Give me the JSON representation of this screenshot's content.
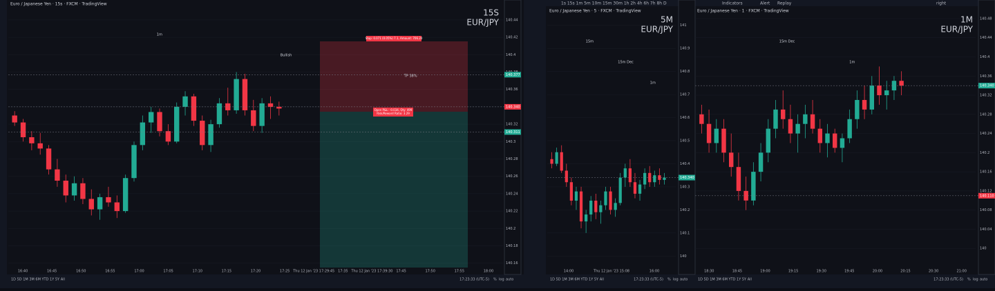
{
  "up_color": "#22ab94",
  "down_color": "#f23645",
  "panels": [
    {
      "title": "Euro / Japanese Yen · 15s · FXCM · TradingView",
      "timeframe": "15S",
      "symbol": "EUR/JPY",
      "ylim": [
        140.155,
        140.455
      ],
      "yticks": [
        140.16,
        140.18,
        140.2,
        140.22,
        140.24,
        140.26,
        140.28,
        140.3,
        140.32,
        140.34,
        140.36,
        140.38,
        140.4,
        140.42,
        140.44
      ],
      "price_tags": [
        {
          "value": 140.377,
          "label": "140.377"
        },
        {
          "value": 140.34,
          "label": "140.340"
        },
        {
          "value": 140.311,
          "label": "140.311"
        }
      ],
      "time_labels": [
        "16:40",
        "16:45",
        "16:50",
        "16:55",
        "17:00",
        "17:05",
        "17:10",
        "17:15",
        "17:20",
        "17:25",
        "Thu 12 Jan '23 17:29:45",
        "17:35",
        "Thu 12 Jan '23 17:39:30",
        "17:45",
        "17:50",
        "17:55",
        "18:00"
      ],
      "annotations": [
        "1m",
        "Bullish",
        "TP 38%"
      ],
      "position": {
        "stop": "Stop: 0.071 (0.05%) 7.1, Amount: 706.20",
        "open": "Open P&L: -0.034, Qty: 499",
        "ratio": "Risk/Reward Ratio: 3.29"
      },
      "candles": [
        [
          140.33,
          140.335,
          140.318,
          140.322
        ],
        [
          140.322,
          140.326,
          140.3,
          140.305
        ],
        [
          140.305,
          140.312,
          140.29,
          140.298
        ],
        [
          140.298,
          140.31,
          140.285,
          140.292
        ],
        [
          140.292,
          140.296,
          140.262,
          140.268
        ],
        [
          140.268,
          140.28,
          140.248,
          140.255
        ],
        [
          140.255,
          140.262,
          140.23,
          140.238
        ],
        [
          140.238,
          140.26,
          140.232,
          140.252
        ],
        [
          140.252,
          140.258,
          140.228,
          140.234
        ],
        [
          140.234,
          140.245,
          140.215,
          140.222
        ],
        [
          140.222,
          140.24,
          140.21,
          140.236
        ],
        [
          140.236,
          140.248,
          140.225,
          140.23
        ],
        [
          140.23,
          140.238,
          140.212,
          140.22
        ],
        [
          140.22,
          140.262,
          140.218,
          140.258
        ],
        [
          140.258,
          140.3,
          140.254,
          140.296
        ],
        [
          140.296,
          140.33,
          140.29,
          140.322
        ],
        [
          140.322,
          140.34,
          140.31,
          140.334
        ],
        [
          140.334,
          140.338,
          140.306,
          140.312
        ],
        [
          140.312,
          140.32,
          140.296,
          140.3
        ],
        [
          140.3,
          140.345,
          140.298,
          140.34
        ],
        [
          140.34,
          140.358,
          140.33,
          140.352
        ],
        [
          140.352,
          140.355,
          140.318,
          140.324
        ],
        [
          140.324,
          140.33,
          140.29,
          140.296
        ],
        [
          140.296,
          140.325,
          140.288,
          140.32
        ],
        [
          140.32,
          140.35,
          140.316,
          140.344
        ],
        [
          140.344,
          140.362,
          140.33,
          140.336
        ],
        [
          140.336,
          140.38,
          140.332,
          140.372
        ],
        [
          140.372,
          140.378,
          140.33,
          140.336
        ],
        [
          140.336,
          140.348,
          140.312,
          140.318
        ],
        [
          140.318,
          140.35,
          140.31,
          140.344
        ],
        [
          140.344,
          140.352,
          140.326,
          140.34
        ],
        [
          140.34,
          140.346,
          140.33,
          140.338
        ]
      ]
    },
    {
      "title": "Euro / Japanese Yen · 5 · FXCM · TradingView",
      "timeframe": "5M",
      "symbol": "EUR/JPY",
      "ylim": [
        139.95,
        141.05
      ],
      "yticks": [
        140,
        140.1,
        140.2,
        140.3,
        140.4,
        140.5,
        140.6,
        140.7,
        140.8,
        140.9,
        141
      ],
      "price_tags": [
        {
          "value": 140.34,
          "label": "140.340"
        }
      ],
      "time_labels": [
        "14:00",
        "Thu 12 Jan '23 15:08",
        "16:00"
      ],
      "annotations": [
        "15m",
        "15m Dec",
        "1m"
      ],
      "candles": [
        [
          140.42,
          140.45,
          140.38,
          140.4
        ],
        [
          140.4,
          140.47,
          140.39,
          140.45
        ],
        [
          140.45,
          140.48,
          140.36,
          140.37
        ],
        [
          140.37,
          140.4,
          140.3,
          140.32
        ],
        [
          140.32,
          140.34,
          140.22,
          140.24
        ],
        [
          140.24,
          140.3,
          140.2,
          140.28
        ],
        [
          140.28,
          140.3,
          140.12,
          140.15
        ],
        [
          140.15,
          140.2,
          140.1,
          140.18
        ],
        [
          140.18,
          140.26,
          140.15,
          140.24
        ],
        [
          140.24,
          140.27,
          140.16,
          140.19
        ],
        [
          140.19,
          140.24,
          140.14,
          140.22
        ],
        [
          140.22,
          140.3,
          140.2,
          140.28
        ],
        [
          140.28,
          140.3,
          140.18,
          140.2
        ],
        [
          140.2,
          140.25,
          140.17,
          140.23
        ],
        [
          140.23,
          140.36,
          140.22,
          140.34
        ],
        [
          140.34,
          140.4,
          140.3,
          140.38
        ],
        [
          140.38,
          140.42,
          140.3,
          140.32
        ],
        [
          140.32,
          140.36,
          140.25,
          140.27
        ],
        [
          140.27,
          140.33,
          140.24,
          140.31
        ],
        [
          140.31,
          140.38,
          140.29,
          140.36
        ],
        [
          140.36,
          140.39,
          140.3,
          140.32
        ],
        [
          140.32,
          140.37,
          140.3,
          140.35
        ],
        [
          140.35,
          140.38,
          140.31,
          140.33
        ],
        [
          140.33,
          140.36,
          140.31,
          140.34
        ]
      ]
    },
    {
      "title": "Euro / Japanese Yen · 1 · FXCM · TradingView",
      "timeframe": "1M",
      "symbol": "EUR/JPY",
      "ylim": [
        139.96,
        140.49
      ],
      "yticks": [
        140,
        140.04,
        140.08,
        140.12,
        140.16,
        140.2,
        140.24,
        140.28,
        140.32,
        140.36,
        140.4,
        140.44,
        140.48
      ],
      "price_tags": [
        {
          "value": 140.34,
          "label": "140.340"
        },
        {
          "value": 140.11,
          "label": "140.110"
        }
      ],
      "time_labels": [
        "18:30",
        "18:45",
        "19:00",
        "19:15",
        "19:30",
        "19:45",
        "20:00",
        "20:15",
        "20:30",
        "21:00"
      ],
      "annotations": [
        "15m Dec",
        "1m"
      ],
      "candles": [
        [
          140.28,
          140.3,
          140.24,
          140.26
        ],
        [
          140.26,
          140.29,
          140.2,
          140.22
        ],
        [
          140.22,
          140.27,
          140.2,
          140.25
        ],
        [
          140.25,
          140.27,
          140.18,
          140.2
        ],
        [
          140.2,
          140.24,
          140.15,
          140.17
        ],
        [
          140.17,
          140.2,
          140.1,
          140.12
        ],
        [
          140.12,
          140.15,
          140.08,
          140.1
        ],
        [
          140.1,
          140.18,
          140.09,
          140.16
        ],
        [
          140.16,
          140.22,
          140.14,
          140.2
        ],
        [
          140.2,
          140.27,
          140.18,
          140.25
        ],
        [
          140.25,
          140.31,
          140.23,
          140.29
        ],
        [
          140.29,
          140.33,
          140.25,
          140.27
        ],
        [
          140.27,
          140.3,
          140.22,
          140.24
        ],
        [
          140.24,
          140.28,
          140.2,
          140.26
        ],
        [
          140.26,
          140.3,
          140.23,
          140.28
        ],
        [
          140.28,
          140.31,
          140.24,
          140.25
        ],
        [
          140.25,
          140.27,
          140.2,
          140.22
        ],
        [
          140.22,
          140.26,
          140.19,
          140.24
        ],
        [
          140.24,
          140.25,
          140.2,
          140.21
        ],
        [
          140.21,
          140.24,
          140.18,
          140.23
        ],
        [
          140.23,
          140.29,
          140.22,
          140.27
        ],
        [
          140.27,
          140.33,
          140.25,
          140.31
        ],
        [
          140.31,
          140.34,
          140.27,
          140.29
        ],
        [
          140.29,
          140.36,
          140.28,
          140.34
        ],
        [
          140.34,
          140.38,
          140.3,
          140.32
        ],
        [
          140.32,
          140.35,
          140.29,
          140.33
        ],
        [
          140.33,
          140.36,
          140.31,
          140.35
        ],
        [
          140.35,
          140.37,
          140.32,
          140.34
        ]
      ]
    }
  ],
  "bottom": {
    "ranges": "1D  5D  1M  3M  6M  YTD  1Y  5Y  All",
    "clock": "17:23:33 (UTC-5)",
    "pct": "%",
    "log": "log",
    "auto": "auto"
  },
  "toolbar": {
    "intervals": "1s  15s  1m  5m  10m  15m  30m  1h  2h  4h  6h  7h  8h  D",
    "indicators": "Indicators",
    "alert": "Alert",
    "replay": "Replay",
    "layout": "right"
  }
}
